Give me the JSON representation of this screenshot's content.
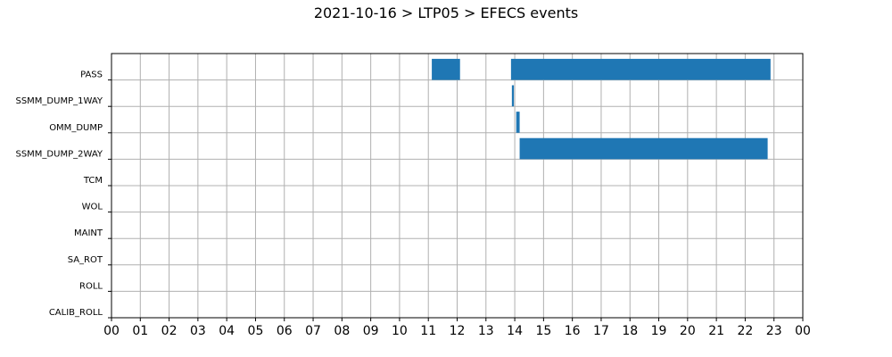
{
  "chart_data": {
    "type": "gantt",
    "title": "2021-10-16 > LTP05 > EFECS events",
    "xlabel": "",
    "ylabel": "",
    "xlim": [
      0,
      24
    ],
    "x_tick_labels": [
      "00",
      "01",
      "02",
      "03",
      "04",
      "05",
      "06",
      "07",
      "08",
      "09",
      "10",
      "11",
      "12",
      "13",
      "14",
      "15",
      "16",
      "17",
      "18",
      "19",
      "20",
      "21",
      "22",
      "23",
      "00"
    ],
    "categories": [
      "PASS",
      "SSMM_DUMP_1WAY",
      "OMM_DUMP",
      "SSMM_DUMP_2WAY",
      "TCM",
      "WOL",
      "MAINT",
      "SA_ROT",
      "ROLL",
      "CALIB_ROLL"
    ],
    "grid": true,
    "bar_color": "#1f77b4",
    "events": [
      {
        "category": "PASS",
        "start": 11.12,
        "end": 12.1
      },
      {
        "category": "PASS",
        "start": 13.87,
        "end": 22.88
      },
      {
        "category": "SSMM_DUMP_1WAY",
        "start": 13.9,
        "end": 13.97
      },
      {
        "category": "OMM_DUMP",
        "start": 14.05,
        "end": 14.17
      },
      {
        "category": "SSMM_DUMP_2WAY",
        "start": 14.17,
        "end": 22.78
      }
    ]
  }
}
